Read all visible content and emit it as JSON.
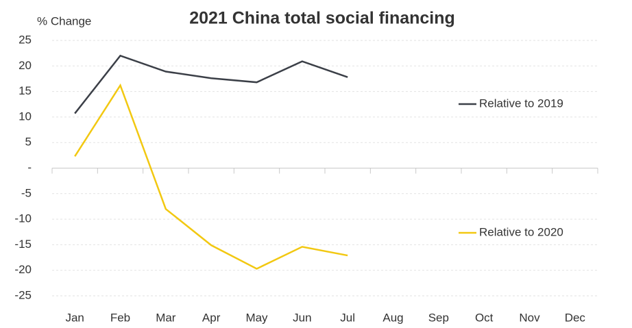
{
  "chart_data": {
    "type": "line",
    "title": "2021 China total social financing",
    "y_label": "% Change",
    "categories": [
      "Jan",
      "Feb",
      "Mar",
      "Apr",
      "May",
      "Jun",
      "Jul",
      "Aug",
      "Sep",
      "Oct",
      "Nov",
      "Dec"
    ],
    "series": [
      {
        "name": "Relative to 2019",
        "color": "#3b3f47",
        "values": [
          10.7,
          22,
          18.9,
          17.6,
          16.8,
          20.9,
          17.8,
          null,
          null,
          null,
          null,
          null
        ]
      },
      {
        "name": "Relative to 2020",
        "color": "#f2c811",
        "values": [
          2.3,
          16.2,
          -8,
          -15.1,
          -19.7,
          -15.4,
          -17.1,
          null,
          null,
          null,
          null,
          null
        ]
      }
    ],
    "ylim": [
      -25,
      25
    ],
    "yticks": [
      -25,
      -20,
      -15,
      -10,
      -5,
      {
        "value": 0,
        "label": "-"
      },
      5,
      10,
      15,
      20,
      25
    ],
    "grid": true
  }
}
